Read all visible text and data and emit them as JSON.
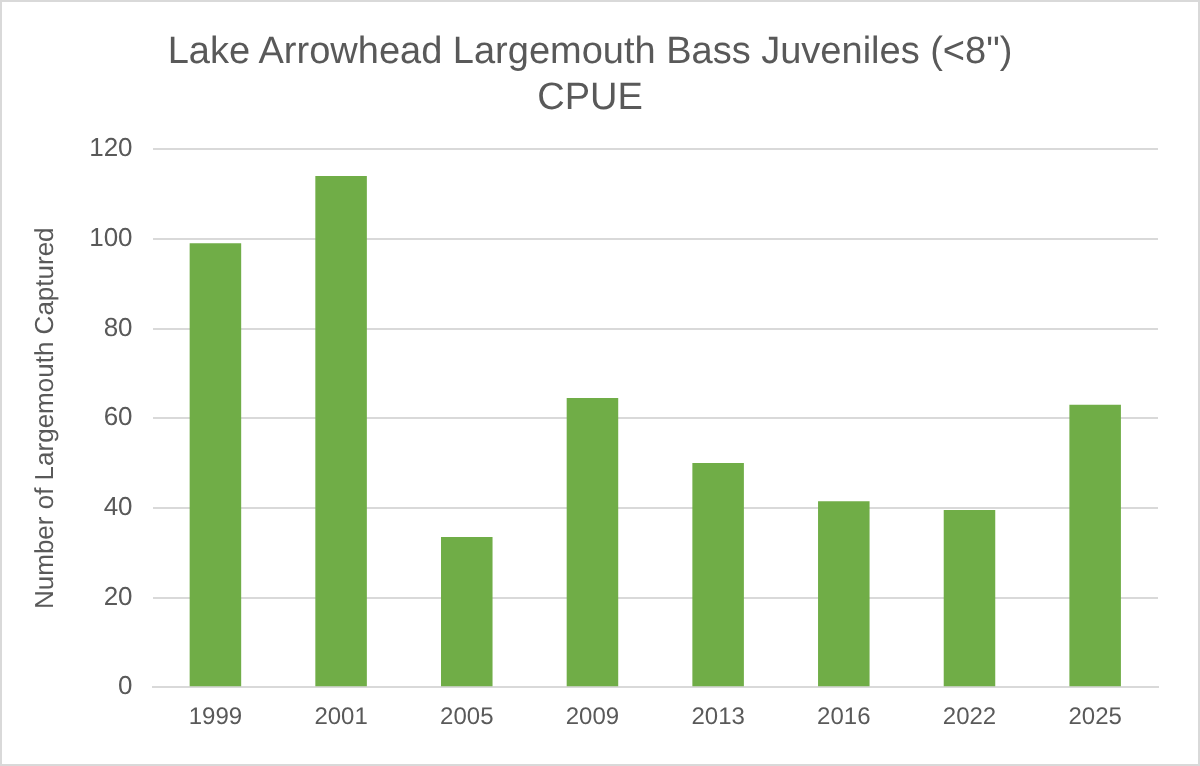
{
  "chart_data": {
    "type": "bar",
    "title": "Lake Arrowhead Largemouth Bass Juveniles (<8\")\nCPUE",
    "ylabel": "Number of Largemouth Captured",
    "categories": [
      "1999",
      "2001",
      "2005",
      "2009",
      "2013",
      "2016",
      "2022",
      "2025"
    ],
    "values": [
      99,
      114,
      33.5,
      64.5,
      50,
      41.5,
      39.5,
      63
    ],
    "color": "#70ad47",
    "ylim": [
      0,
      120
    ],
    "yticks": [
      0,
      20,
      40,
      60,
      80,
      100,
      120
    ],
    "grid": "y",
    "legend": false
  }
}
